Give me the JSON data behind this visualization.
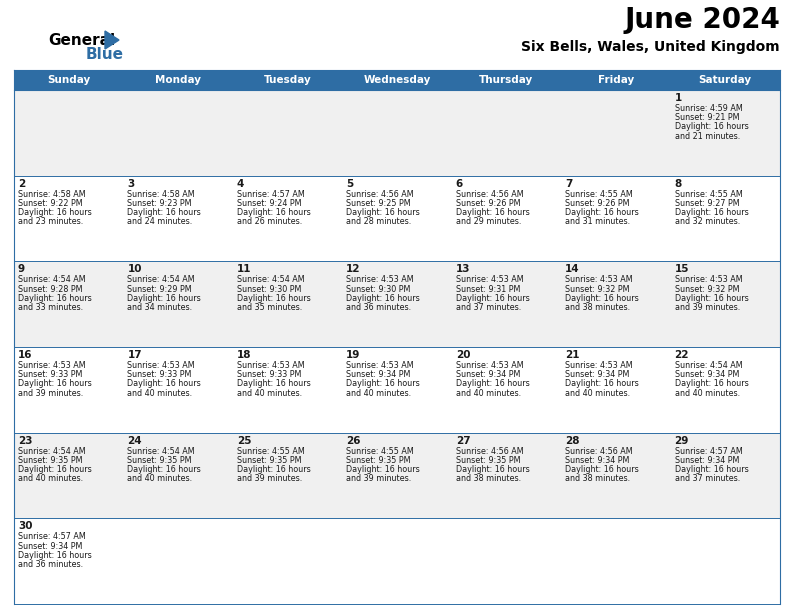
{
  "title": "June 2024",
  "subtitle": "Six Bells, Wales, United Kingdom",
  "days_of_week": [
    "Sunday",
    "Monday",
    "Tuesday",
    "Wednesday",
    "Thursday",
    "Friday",
    "Saturday"
  ],
  "header_bg": "#2E6DA4",
  "header_fg": "#FFFFFF",
  "row_bg_odd": "#F0F0F0",
  "row_bg_even": "#FFFFFF",
  "border_color": "#2E6DA4",
  "day_num_color": "#1a1a1a",
  "text_color": "#1a1a1a",
  "calendar_data": [
    [
      {
        "day": "",
        "sunrise": "",
        "sunset": "",
        "daylight_h": "",
        "daylight_m": ""
      },
      {
        "day": "",
        "sunrise": "",
        "sunset": "",
        "daylight_h": "",
        "daylight_m": ""
      },
      {
        "day": "",
        "sunrise": "",
        "sunset": "",
        "daylight_h": "",
        "daylight_m": ""
      },
      {
        "day": "",
        "sunrise": "",
        "sunset": "",
        "daylight_h": "",
        "daylight_m": ""
      },
      {
        "day": "",
        "sunrise": "",
        "sunset": "",
        "daylight_h": "",
        "daylight_m": ""
      },
      {
        "day": "",
        "sunrise": "",
        "sunset": "",
        "daylight_h": "",
        "daylight_m": ""
      },
      {
        "day": "1",
        "sunrise": "4:59 AM",
        "sunset": "9:21 PM",
        "daylight_h": "16",
        "daylight_m": "21"
      }
    ],
    [
      {
        "day": "2",
        "sunrise": "4:58 AM",
        "sunset": "9:22 PM",
        "daylight_h": "16",
        "daylight_m": "23"
      },
      {
        "day": "3",
        "sunrise": "4:58 AM",
        "sunset": "9:23 PM",
        "daylight_h": "16",
        "daylight_m": "24"
      },
      {
        "day": "4",
        "sunrise": "4:57 AM",
        "sunset": "9:24 PM",
        "daylight_h": "16",
        "daylight_m": "26"
      },
      {
        "day": "5",
        "sunrise": "4:56 AM",
        "sunset": "9:25 PM",
        "daylight_h": "16",
        "daylight_m": "28"
      },
      {
        "day": "6",
        "sunrise": "4:56 AM",
        "sunset": "9:26 PM",
        "daylight_h": "16",
        "daylight_m": "29"
      },
      {
        "day": "7",
        "sunrise": "4:55 AM",
        "sunset": "9:26 PM",
        "daylight_h": "16",
        "daylight_m": "31"
      },
      {
        "day": "8",
        "sunrise": "4:55 AM",
        "sunset": "9:27 PM",
        "daylight_h": "16",
        "daylight_m": "32"
      }
    ],
    [
      {
        "day": "9",
        "sunrise": "4:54 AM",
        "sunset": "9:28 PM",
        "daylight_h": "16",
        "daylight_m": "33"
      },
      {
        "day": "10",
        "sunrise": "4:54 AM",
        "sunset": "9:29 PM",
        "daylight_h": "16",
        "daylight_m": "34"
      },
      {
        "day": "11",
        "sunrise": "4:54 AM",
        "sunset": "9:30 PM",
        "daylight_h": "16",
        "daylight_m": "35"
      },
      {
        "day": "12",
        "sunrise": "4:53 AM",
        "sunset": "9:30 PM",
        "daylight_h": "16",
        "daylight_m": "36"
      },
      {
        "day": "13",
        "sunrise": "4:53 AM",
        "sunset": "9:31 PM",
        "daylight_h": "16",
        "daylight_m": "37"
      },
      {
        "day": "14",
        "sunrise": "4:53 AM",
        "sunset": "9:32 PM",
        "daylight_h": "16",
        "daylight_m": "38"
      },
      {
        "day": "15",
        "sunrise": "4:53 AM",
        "sunset": "9:32 PM",
        "daylight_h": "16",
        "daylight_m": "39"
      }
    ],
    [
      {
        "day": "16",
        "sunrise": "4:53 AM",
        "sunset": "9:33 PM",
        "daylight_h": "16",
        "daylight_m": "39"
      },
      {
        "day": "17",
        "sunrise": "4:53 AM",
        "sunset": "9:33 PM",
        "daylight_h": "16",
        "daylight_m": "40"
      },
      {
        "day": "18",
        "sunrise": "4:53 AM",
        "sunset": "9:33 PM",
        "daylight_h": "16",
        "daylight_m": "40"
      },
      {
        "day": "19",
        "sunrise": "4:53 AM",
        "sunset": "9:34 PM",
        "daylight_h": "16",
        "daylight_m": "40"
      },
      {
        "day": "20",
        "sunrise": "4:53 AM",
        "sunset": "9:34 PM",
        "daylight_h": "16",
        "daylight_m": "40"
      },
      {
        "day": "21",
        "sunrise": "4:53 AM",
        "sunset": "9:34 PM",
        "daylight_h": "16",
        "daylight_m": "40"
      },
      {
        "day": "22",
        "sunrise": "4:54 AM",
        "sunset": "9:34 PM",
        "daylight_h": "16",
        "daylight_m": "40"
      }
    ],
    [
      {
        "day": "23",
        "sunrise": "4:54 AM",
        "sunset": "9:35 PM",
        "daylight_h": "16",
        "daylight_m": "40"
      },
      {
        "day": "24",
        "sunrise": "4:54 AM",
        "sunset": "9:35 PM",
        "daylight_h": "16",
        "daylight_m": "40"
      },
      {
        "day": "25",
        "sunrise": "4:55 AM",
        "sunset": "9:35 PM",
        "daylight_h": "16",
        "daylight_m": "39"
      },
      {
        "day": "26",
        "sunrise": "4:55 AM",
        "sunset": "9:35 PM",
        "daylight_h": "16",
        "daylight_m": "39"
      },
      {
        "day": "27",
        "sunrise": "4:56 AM",
        "sunset": "9:35 PM",
        "daylight_h": "16",
        "daylight_m": "38"
      },
      {
        "day": "28",
        "sunrise": "4:56 AM",
        "sunset": "9:34 PM",
        "daylight_h": "16",
        "daylight_m": "38"
      },
      {
        "day": "29",
        "sunrise": "4:57 AM",
        "sunset": "9:34 PM",
        "daylight_h": "16",
        "daylight_m": "37"
      }
    ],
    [
      {
        "day": "30",
        "sunrise": "4:57 AM",
        "sunset": "9:34 PM",
        "daylight_h": "16",
        "daylight_m": "36"
      },
      {
        "day": "",
        "sunrise": "",
        "sunset": "",
        "daylight_h": "",
        "daylight_m": ""
      },
      {
        "day": "",
        "sunrise": "",
        "sunset": "",
        "daylight_h": "",
        "daylight_m": ""
      },
      {
        "day": "",
        "sunrise": "",
        "sunset": "",
        "daylight_h": "",
        "daylight_m": ""
      },
      {
        "day": "",
        "sunrise": "",
        "sunset": "",
        "daylight_h": "",
        "daylight_m": ""
      },
      {
        "day": "",
        "sunrise": "",
        "sunset": "",
        "daylight_h": "",
        "daylight_m": ""
      },
      {
        "day": "",
        "sunrise": "",
        "sunset": "",
        "daylight_h": "",
        "daylight_m": ""
      }
    ]
  ],
  "fig_width": 7.92,
  "fig_height": 6.12,
  "dpi": 100
}
